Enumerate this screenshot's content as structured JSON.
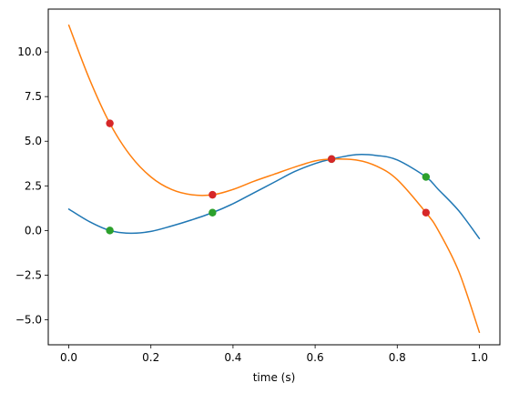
{
  "chart_data": {
    "type": "line",
    "title": "",
    "xlabel": "time (s)",
    "ylabel": "",
    "xlim": [
      -0.05,
      1.05
    ],
    "ylim": [
      -6.4,
      12.4
    ],
    "xticks": [
      0.0,
      0.2,
      0.4,
      0.6,
      0.8,
      1.0
    ],
    "xtick_labels": [
      "0.0",
      "0.2",
      "0.4",
      "0.6",
      "0.8",
      "1.0"
    ],
    "yticks": [
      -5.0,
      -2.5,
      0.0,
      2.5,
      5.0,
      7.5,
      10.0
    ],
    "ytick_labels": [
      "−5.0",
      "−2.5",
      "0.0",
      "2.5",
      "5.0",
      "7.5",
      "10.0"
    ],
    "grid": false,
    "series": [
      {
        "color": "#1f77b4",
        "kind": "line",
        "x": [
          0.0,
          0.05,
          0.1,
          0.15,
          0.2,
          0.25,
          0.3,
          0.35,
          0.4,
          0.45,
          0.5,
          0.55,
          0.6,
          0.64,
          0.7,
          0.75,
          0.8,
          0.87,
          0.9,
          0.95,
          1.0
        ],
        "y": [
          1.2,
          0.5,
          0.0,
          -0.15,
          -0.05,
          0.25,
          0.6,
          1.0,
          1.5,
          2.1,
          2.7,
          3.3,
          3.75,
          4.0,
          4.25,
          4.2,
          3.95,
          3.0,
          2.3,
          1.1,
          -0.45
        ]
      },
      {
        "color": "#ff7f0e",
        "kind": "line",
        "x": [
          0.0,
          0.05,
          0.1,
          0.15,
          0.2,
          0.25,
          0.3,
          0.35,
          0.4,
          0.45,
          0.5,
          0.55,
          0.6,
          0.64,
          0.7,
          0.75,
          0.8,
          0.87,
          0.9,
          0.95,
          1.0
        ],
        "y": [
          11.5,
          8.5,
          6.0,
          4.2,
          3.0,
          2.3,
          2.0,
          2.0,
          2.3,
          2.75,
          3.15,
          3.55,
          3.9,
          4.0,
          3.95,
          3.6,
          2.85,
          1.0,
          0.0,
          -2.3,
          -5.7
        ]
      },
      {
        "color": "#2ca02c",
        "kind": "points",
        "x": [
          0.1,
          0.35,
          0.64,
          0.87
        ],
        "y": [
          0.0,
          1.0,
          4.0,
          3.0
        ]
      },
      {
        "color": "#d62728",
        "kind": "points",
        "x": [
          0.1,
          0.35,
          0.64,
          0.87
        ],
        "y": [
          6.0,
          2.0,
          4.0,
          1.0
        ]
      }
    ]
  }
}
